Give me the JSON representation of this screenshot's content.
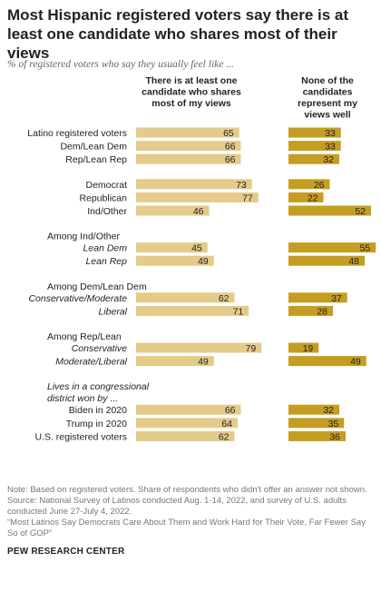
{
  "title": "Most Hispanic registered voters say there is at least one candidate who shares most of their views",
  "subtitle": "% of registered voters who say they usually feel like ...",
  "chart_data": {
    "type": "bar",
    "orientation": "horizontal",
    "layout": "two-panel",
    "series": [
      {
        "name": "There is at least one candidate who shares most of my views",
        "color": "#e4cb89",
        "values": [
          65,
          66,
          66,
          73,
          77,
          46,
          45,
          49,
          62,
          71,
          79,
          49,
          66,
          64,
          62
        ]
      },
      {
        "name": "None of the candidates represent my views well",
        "color": "#c59d22",
        "values": [
          33,
          33,
          32,
          26,
          22,
          52,
          55,
          48,
          37,
          28,
          19,
          49,
          32,
          35,
          36
        ]
      }
    ],
    "rows": [
      {
        "kind": "group",
        "label": "Latino registered voters"
      },
      {
        "kind": "group",
        "label": "Dem/Lean Dem"
      },
      {
        "kind": "group",
        "label": "Rep/Lean Rep"
      },
      {
        "kind": "group",
        "label": "Democrat"
      },
      {
        "kind": "group",
        "label": "Republican"
      },
      {
        "kind": "group",
        "label": "Ind/Other"
      },
      {
        "kind": "header",
        "label": "Among Ind/Other"
      },
      {
        "kind": "group",
        "label": "Lean Dem",
        "italic": true
      },
      {
        "kind": "group",
        "label": "Lean Rep",
        "italic": true
      },
      {
        "kind": "header",
        "label": "Among Dem/Lean Dem"
      },
      {
        "kind": "group",
        "label": "Conservative/Moderate",
        "italic": true
      },
      {
        "kind": "group",
        "label": "Liberal",
        "italic": true
      },
      {
        "kind": "header",
        "label": "Among Rep/Lean"
      },
      {
        "kind": "group",
        "label": "Conservative",
        "italic": true
      },
      {
        "kind": "group",
        "label": "Moderate/Liberal",
        "italic": true
      },
      {
        "kind": "header",
        "label": "Lives in a congressional",
        "italic": true
      },
      {
        "kind": "header",
        "label": "district won by ...",
        "italic": true
      },
      {
        "kind": "group",
        "label": "Biden in 2020"
      },
      {
        "kind": "group",
        "label": "Trump in 2020"
      },
      {
        "kind": "group",
        "label": "U.S. registered voters"
      }
    ],
    "xlim": [
      0,
      100
    ]
  },
  "footer": {
    "note": "Note: Based on registered voters. Share of respondents who didn't offer an answer not shown.",
    "source": "Source: National Survey of Latinos conducted Aug. 1-14, 2022, and survey of U.S. adults conducted June 27-July 4, 2022.",
    "report": "“Most Latinos Say Democrats Care About Them and Work Hard for Their Vote, Far Fewer Say So of GOP”",
    "brand": "PEW RESEARCH CENTER"
  },
  "colors": {
    "light_bar": "#e4cb89",
    "dark_bar": "#c59d22",
    "label_text": "#222222",
    "footer_text": "#777777"
  }
}
